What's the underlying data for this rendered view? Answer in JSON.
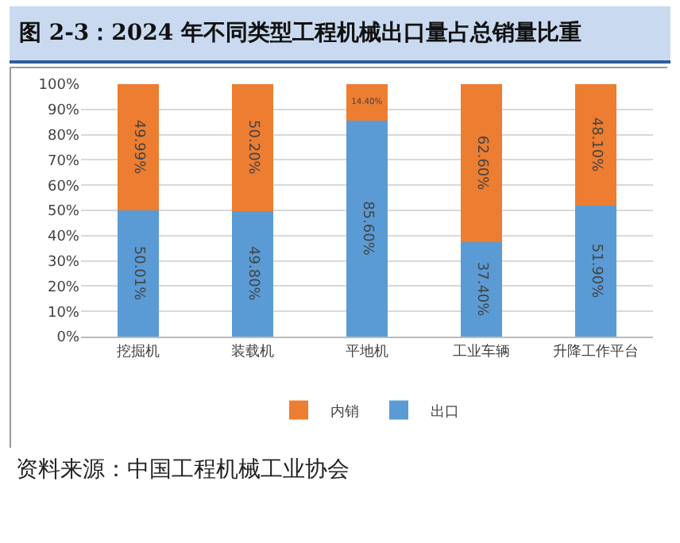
{
  "chart_data": {
    "type": "bar",
    "title": "图 2-3：2024 年不同类型工程机械出口量占总销量比重",
    "stacked": true,
    "categories": [
      "挖掘机",
      "装载机",
      "平地机",
      "工业车辆",
      "升降工作平台"
    ],
    "series": [
      {
        "name": "出口",
        "color": "#5b9bd5",
        "values": [
          50.01,
          49.8,
          85.6,
          37.4,
          51.9
        ],
        "value_labels": [
          "50.01%",
          "49.80%",
          "85.60%",
          "37.40%",
          "51.90%"
        ]
      },
      {
        "name": "内销",
        "color": "#ed7d31",
        "values": [
          49.99,
          50.2,
          14.4,
          62.6,
          48.1
        ],
        "value_labels": [
          "49.99%",
          "50.20%",
          "14.40%",
          "62.60%",
          "48.10%"
        ]
      }
    ],
    "ylim": [
      0,
      100
    ],
    "yticks": [
      {
        "value": 0,
        "label": "0%"
      },
      {
        "value": 10,
        "label": "10%"
      },
      {
        "value": 20,
        "label": "20%"
      },
      {
        "value": 30,
        "label": "30%"
      },
      {
        "value": 40,
        "label": "40%"
      },
      {
        "value": 50,
        "label": "50%"
      },
      {
        "value": 60,
        "label": "60%"
      },
      {
        "value": 70,
        "label": "70%"
      },
      {
        "value": 80,
        "label": "80%"
      },
      {
        "value": 90,
        "label": "90%"
      },
      {
        "value": 100,
        "label": "100%"
      }
    ],
    "grid": "y",
    "legend": "bottom",
    "annotations": [
      "资料来源：中国工程机械工业协会"
    ]
  }
}
